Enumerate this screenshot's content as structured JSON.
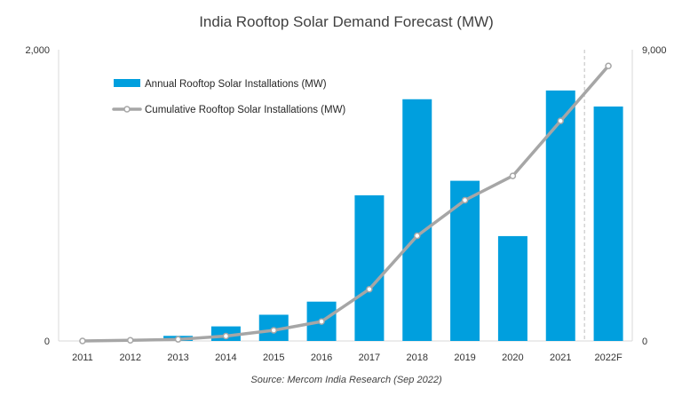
{
  "chart_data": {
    "type": "bar",
    "title": "India Rooftop Solar Demand Forecast (MW)",
    "categories": [
      "2011",
      "2012",
      "2013",
      "2014",
      "2015",
      "2016",
      "2017",
      "2018",
      "2019",
      "2020",
      "2021",
      "2022F"
    ],
    "series": [
      {
        "name": "Annual Rooftop Solar Installations (MW)",
        "kind": "bar",
        "axis": "left",
        "color": "#009fde",
        "values": [
          0,
          5,
          35,
          100,
          180,
          270,
          1000,
          1660,
          1100,
          720,
          1720,
          1610
        ]
      },
      {
        "name": "Cumulative Rooftop Solar Installations (MW)",
        "kind": "line",
        "axis": "right",
        "color": "#a6a6a6",
        "values": [
          0,
          20,
          50,
          150,
          330,
          600,
          1600,
          3250,
          4350,
          5100,
          6800,
          8500
        ]
      }
    ],
    "left_axis": {
      "min": 0,
      "max": 2000,
      "ticks": [
        "0",
        "2,000"
      ]
    },
    "right_axis": {
      "min": 0,
      "max": 9000,
      "ticks": [
        "0",
        "9,000"
      ]
    },
    "forecast_divider_after": "2021",
    "legend_position": "top-left",
    "source": "Source: Mercom India Research (Sep 2022)"
  }
}
